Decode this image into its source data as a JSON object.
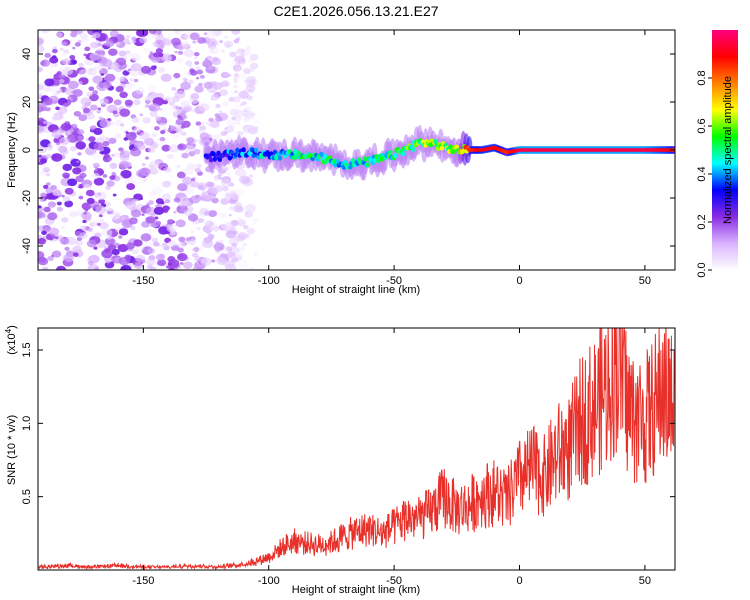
{
  "figure_title": "C2E1.2026.056.13.21.E27",
  "chart_data": [
    {
      "type": "heatmap",
      "name": "spectrogram",
      "title": "C2E1.2026.056.13.21.E27",
      "xlabel": "Height of straight line (km)",
      "ylabel": "Frequency (Hz)",
      "xlim": [
        -192,
        62
      ],
      "ylim": [
        -50,
        50
      ],
      "xticks": [
        -150,
        -100,
        -50,
        0,
        50
      ],
      "yticks": [
        -40,
        -20,
        0,
        20,
        40
      ],
      "colorbar": {
        "label": "Normalized spectral amplitude",
        "range": [
          0,
          1
        ],
        "ticks": [
          0.0,
          0.2,
          0.4,
          0.6,
          0.8
        ],
        "tick_labels": [
          "0.0",
          "0.2",
          "0.4",
          "0.6",
          "0.8"
        ],
        "colormap": [
          "#ffffff",
          "#d9b3ff",
          "#8a2be2",
          "#0000ff",
          "#00ffff",
          "#00ff00",
          "#ffff00",
          "#ff8000",
          "#ff0000",
          "#ff0080"
        ]
      },
      "ridge": {
        "description": "frequency of peak spectral amplitude vs height",
        "x": [
          -125,
          -115,
          -110,
          -100,
          -90,
          -80,
          -70,
          -60,
          -50,
          -40,
          -35,
          -30,
          -25,
          -20,
          -15,
          -10,
          -5,
          0,
          10,
          20,
          30,
          40,
          50,
          60,
          62
        ],
        "y": [
          -3,
          -2,
          -1,
          -2,
          -2,
          -3,
          -6,
          -5,
          -2,
          3,
          3,
          1,
          0,
          0,
          0,
          1,
          -1,
          0,
          0,
          0,
          0,
          0,
          0,
          0,
          0
        ],
        "amplitude": [
          0.35,
          0.4,
          0.45,
          0.45,
          0.5,
          0.55,
          0.5,
          0.5,
          0.55,
          0.6,
          0.65,
          0.6,
          0.7,
          0.85,
          0.9,
          0.9,
          0.85,
          0.95,
          0.95,
          0.95,
          0.95,
          0.95,
          0.95,
          0.9,
          0.85
        ]
      },
      "noise_region": {
        "description": "broadband low-amplitude noise",
        "x_range": [
          -192,
          -105
        ],
        "amplitude_range": [
          0.0,
          0.25
        ]
      }
    },
    {
      "type": "line",
      "name": "snr",
      "xlabel": "Height of straight line (km)",
      "ylabel": "SNR (10 * v/v)",
      "y_multiplier_label": "(x10",
      "y_multiplier_exponent": "4",
      "y_multiplier_suffix": ")",
      "xlim": [
        -192,
        62
      ],
      "ylim": [
        0,
        1.65
      ],
      "xticks": [
        -150,
        -100,
        -50,
        0,
        50
      ],
      "yticks": [
        0.5,
        1.0,
        1.5
      ],
      "ytick_labels": [
        "0.5",
        "1.0",
        "1.5"
      ],
      "color": "#e8302a",
      "series": [
        {
          "name": "SNR",
          "x": [
            -192,
            -180,
            -170,
            -160,
            -150,
            -140,
            -130,
            -120,
            -110,
            -105,
            -100,
            -95,
            -90,
            -85,
            -80,
            -75,
            -70,
            -65,
            -60,
            -55,
            -50,
            -45,
            -40,
            -35,
            -30,
            -25,
            -20,
            -15,
            -10,
            -5,
            0,
            5,
            10,
            15,
            20,
            25,
            30,
            35,
            38,
            40,
            42,
            45,
            50,
            55,
            57,
            60,
            62
          ],
          "y": [
            0.02,
            0.03,
            0.02,
            0.03,
            0.02,
            0.02,
            0.03,
            0.02,
            0.04,
            0.06,
            0.09,
            0.15,
            0.2,
            0.18,
            0.17,
            0.19,
            0.23,
            0.26,
            0.28,
            0.25,
            0.29,
            0.36,
            0.35,
            0.4,
            0.5,
            0.41,
            0.44,
            0.51,
            0.53,
            0.48,
            0.62,
            0.69,
            0.64,
            0.79,
            0.84,
            1.03,
            1.11,
            1.25,
            1.38,
            1.45,
            1.2,
            1.05,
            1.02,
            1.15,
            1.25,
            1.16,
            1.1
          ]
        }
      ]
    }
  ]
}
